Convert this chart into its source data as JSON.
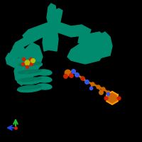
{
  "background_color": "#000000",
  "fig_size": [
    2.0,
    2.0
  ],
  "dpi": 100,
  "protein_color": "#008B6E",
  "ligand_color": "#CC6600",
  "atom_red": "#CC2200",
  "atom_yellow": "#BBBB00",
  "atom_blue": "#3355EE",
  "axis_green": "#22BB22",
  "axis_blue": "#2244EE"
}
